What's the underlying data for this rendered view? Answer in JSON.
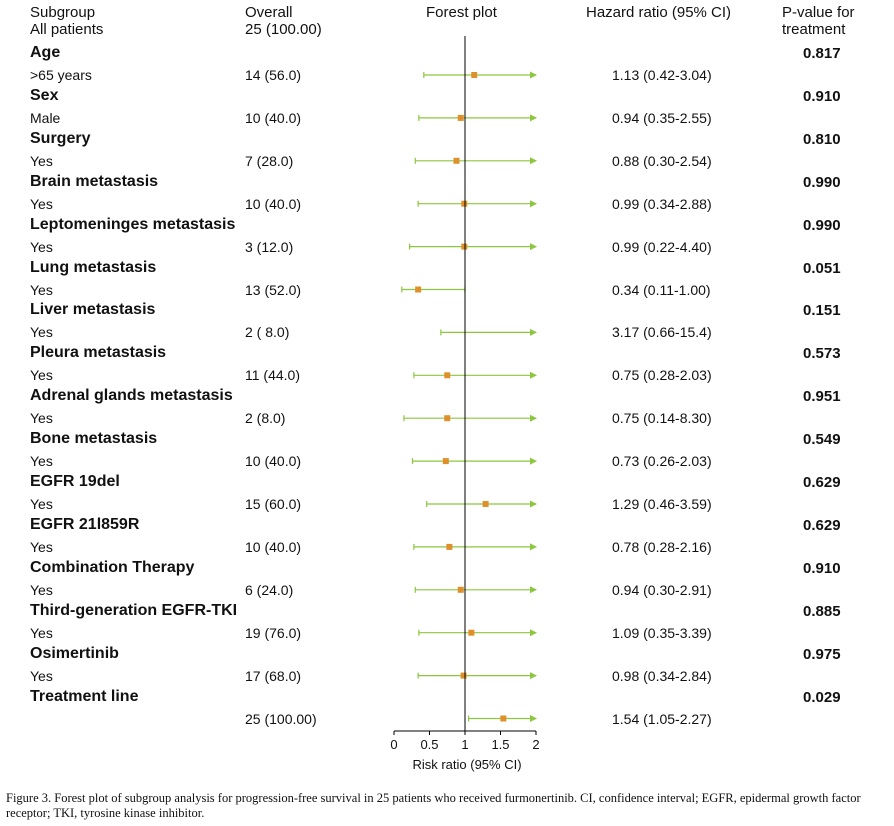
{
  "headers": {
    "subgroup": "Subgroup",
    "all_patients": "All patients",
    "overall": "Overall",
    "overall_total": "25 (100.00)",
    "forest": "Forest plot",
    "hr": "Hazard ratio (95% CI)",
    "pvalue_line1": "P-value for",
    "pvalue_line2": "treatment"
  },
  "caption": "Figure 3. Forest plot of subgroup analysis for progression-free survival in 25 patients who received furmonertinib. CI, confidence interval; EGFR, epidermal growth factor receptor; TKI, tyrosine kinase inhibitor.",
  "colors": {
    "marker": "#e0902a",
    "ci_line": "#8dc63f",
    "axis": "#000000"
  },
  "chart_data": {
    "type": "forest",
    "xlabel": "Risk ratio (95% CI)",
    "xlim": [
      0,
      2
    ],
    "xticks": [
      0,
      0.5,
      1,
      1.5,
      2
    ],
    "xtick_labels": [
      "0",
      "0.5",
      "1",
      "1.5",
      "2"
    ],
    "reference_line": 1,
    "rows": [
      {
        "group": "Age",
        "label": ">65 years",
        "n": "14 (56.0)",
        "hr": 1.13,
        "lo": 0.42,
        "hi": 3.04,
        "hr_text": "1.13 (0.42-3.04)",
        "p": "0.817"
      },
      {
        "group": "Sex",
        "label": "Male",
        "n": "10 (40.0)",
        "hr": 0.94,
        "lo": 0.35,
        "hi": 2.55,
        "hr_text": "0.94 (0.35-2.55)",
        "p": "0.910"
      },
      {
        "group": "Surgery",
        "label": "Yes",
        "n": "7 (28.0)",
        "hr": 0.88,
        "lo": 0.3,
        "hi": 2.54,
        "hr_text": "0.88 (0.30-2.54)",
        "p": "0.810"
      },
      {
        "group": "Brain metastasis",
        "label": "Yes",
        "n": "10 (40.0)",
        "hr": 0.99,
        "lo": 0.34,
        "hi": 2.88,
        "hr_text": "0.99 (0.34-2.88)",
        "p": "0.990"
      },
      {
        "group": "Leptomeninges metastasis",
        "label": "Yes",
        "n": "3 (12.0)",
        "hr": 0.99,
        "lo": 0.22,
        "hi": 4.4,
        "hr_text": "0.99 (0.22-4.40)",
        "p": "0.990"
      },
      {
        "group": "Lung metastasis",
        "label": "Yes",
        "n": "13 (52.0)",
        "hr": 0.34,
        "lo": 0.11,
        "hi": 1.0,
        "hr_text": "0.34 (0.11-1.00)",
        "p": "0.051"
      },
      {
        "group": "Liver metastasis",
        "label": "Yes",
        "n": "2 ( 8.0)",
        "hr": 3.17,
        "lo": 0.66,
        "hi": 15.4,
        "hr_text": "3.17 (0.66-15.4)",
        "p": "0.151"
      },
      {
        "group": "Pleura metastasis",
        "label": "Yes",
        "n": "11 (44.0)",
        "hr": 0.75,
        "lo": 0.28,
        "hi": 2.03,
        "hr_text": "0.75 (0.28-2.03)",
        "p": "0.573"
      },
      {
        "group": "Adrenal glands metastasis",
        "label": "Yes",
        "n": "2 (8.0)",
        "hr": 0.75,
        "lo": 0.14,
        "hi": 8.3,
        "hr_text": "0.75 (0.14-8.30)",
        "p": "0.951"
      },
      {
        "group": "Bone metastasis",
        "label": "Yes",
        "n": "10 (40.0)",
        "hr": 0.73,
        "lo": 0.26,
        "hi": 2.03,
        "hr_text": "0.73 (0.26-2.03)",
        "p": "0.549"
      },
      {
        "group": "EGFR 19del",
        "label": "Yes",
        "n": "15 (60.0)",
        "hr": 1.29,
        "lo": 0.46,
        "hi": 3.59,
        "hr_text": "1.29 (0.46-3.59)",
        "p": "0.629"
      },
      {
        "group": "EGFR 21l859R",
        "label": "Yes",
        "n": "10 (40.0)",
        "hr": 0.78,
        "lo": 0.28,
        "hi": 2.16,
        "hr_text": "0.78 (0.28-2.16)",
        "p": "0.629"
      },
      {
        "group": "Combination Therapy",
        "label": "Yes",
        "n": "6 (24.0)",
        "hr": 0.94,
        "lo": 0.3,
        "hi": 2.91,
        "hr_text": "0.94 (0.30-2.91)",
        "p": "0.910"
      },
      {
        "group": "Third-generation EGFR-TKI",
        "label": "Yes",
        "n": "19 (76.0)",
        "hr": 1.09,
        "lo": 0.35,
        "hi": 3.39,
        "hr_text": "1.09 (0.35-3.39)",
        "p": "0.885"
      },
      {
        "group": "Osimertinib",
        "label": "Yes",
        "n": "17 (68.0)",
        "hr": 0.98,
        "lo": 0.34,
        "hi": 2.84,
        "hr_text": "0.98 (0.34-2.84)",
        "p": "0.975"
      },
      {
        "group": "Treatment line",
        "label": "",
        "n": "25 (100.00)",
        "hr": 1.54,
        "lo": 1.05,
        "hi": 2.27,
        "hr_text": "1.54 (1.05-2.27)",
        "p": "0.029"
      }
    ]
  }
}
